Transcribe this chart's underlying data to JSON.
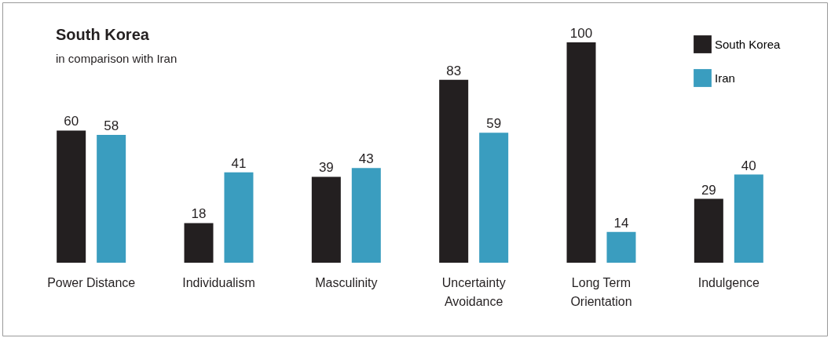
{
  "chart_data": {
    "type": "bar",
    "title": "South Korea",
    "subtitle": "in comparison with Iran",
    "categories": [
      "Power Distance",
      "Individualism",
      "Masculinity",
      "Uncertainty\nAvoidance",
      "Long Term\nOrientation",
      "Indulgence"
    ],
    "series": [
      {
        "name": "South Korea",
        "color": "#231f20",
        "values": [
          60,
          18,
          39,
          83,
          100,
          29
        ]
      },
      {
        "name": "Iran",
        "color": "#3a9dbf",
        "values": [
          58,
          41,
          43,
          59,
          14,
          40
        ]
      }
    ],
    "data_labels": true,
    "legend": "top right"
  }
}
